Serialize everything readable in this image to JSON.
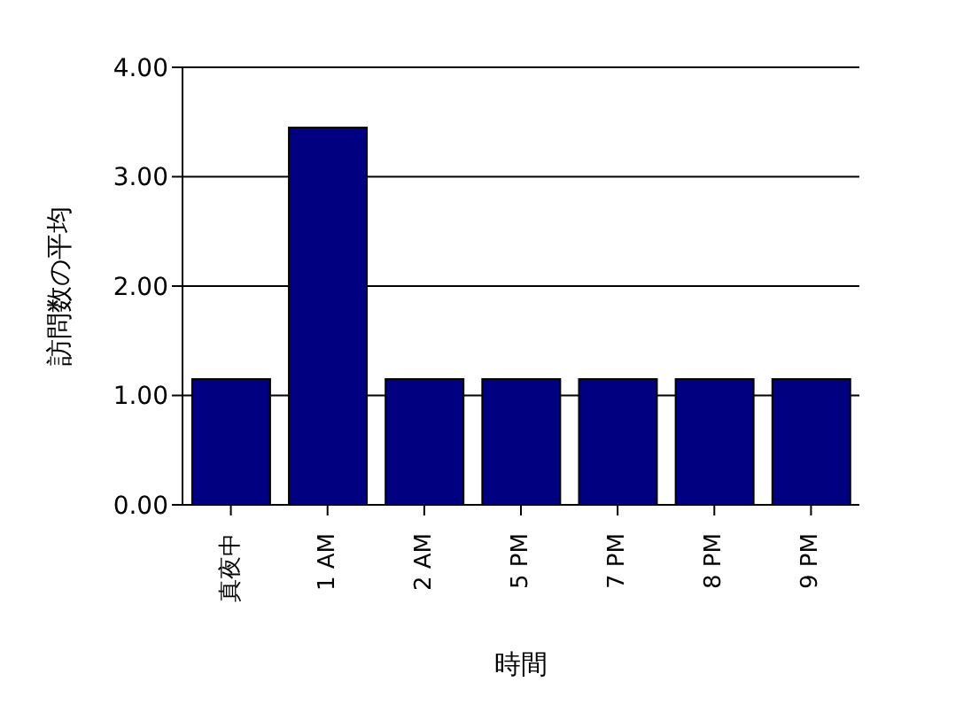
{
  "chart_data": {
    "type": "bar",
    "xlabel": "時間",
    "ylabel": "訪問数の平均",
    "categories": [
      "真夜中",
      "1 AM",
      "2 AM",
      "5 PM",
      "7 PM",
      "8 PM",
      "9 PM"
    ],
    "values": [
      1.15,
      3.45,
      1.15,
      1.15,
      1.15,
      1.15,
      1.15
    ],
    "color": "#000080",
    "ylim": [
      0,
      4
    ],
    "yticks": [
      {
        "value": 0,
        "label": "0.00"
      },
      {
        "value": 1,
        "label": "1.00"
      },
      {
        "value": 2,
        "label": "2.00"
      },
      {
        "value": 3,
        "label": "3.00"
      },
      {
        "value": 4,
        "label": "4.00"
      }
    ],
    "grid": "y",
    "legend": false
  }
}
